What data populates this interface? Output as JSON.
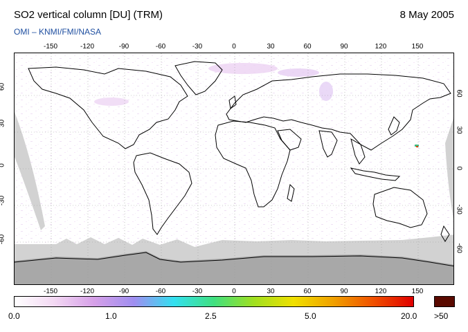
{
  "header": {
    "title": "SO2 vertical column [DU] (TRM)",
    "date": "8 May 2005",
    "credit": "OMI  –  KNMI/FMI/NASA"
  },
  "map": {
    "lon_ticks": [
      "-150",
      "-120",
      "-90",
      "-60",
      "-30",
      "0",
      "30",
      "60",
      "90",
      "120",
      "150"
    ],
    "lat_ticks": [
      "60",
      "30",
      "0",
      "-30",
      "-60"
    ],
    "no_data_color": "#d2d2d2",
    "antarctica_color": "#a8a8a8"
  },
  "colorbar": {
    "labels": [
      "0.0",
      "1.0",
      "2.5",
      "5.0",
      "20.0",
      ">50"
    ],
    "colors": [
      "#ffffff",
      "#f3d8f3",
      "#d6a0e8",
      "#9f8ef0",
      "#33e0f0",
      "#40e080",
      "#a0e020",
      "#f0e000",
      "#f0a000",
      "#f05000",
      "#e00000"
    ],
    "max_color": "#5a0a00"
  }
}
